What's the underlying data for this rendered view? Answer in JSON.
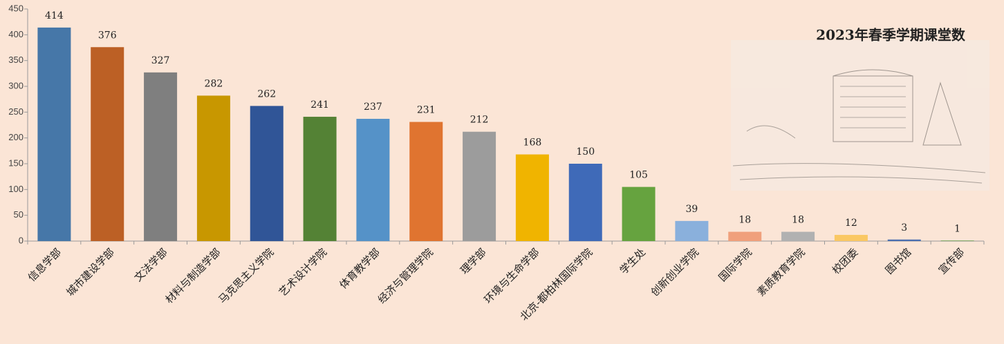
{
  "chart_data": {
    "type": "bar",
    "title": "2023年春季学期课堂数",
    "categories": [
      "信息学部",
      "城市建设学部",
      "文法学部",
      "材料与制造学部",
      "马克思主义学院",
      "艺术设计学院",
      "体育教学部",
      "经济与管理学院",
      "理学部",
      "环境与生命学部",
      "北京-都柏林国际学院",
      "学生处",
      "创新创业学院",
      "国际学院",
      "素质教育学院",
      "校团委",
      "图书馆",
      "宣传部"
    ],
    "values": [
      414,
      376,
      327,
      282,
      262,
      241,
      237,
      231,
      212,
      168,
      150,
      105,
      39,
      18,
      18,
      12,
      3,
      1
    ],
    "colors": [
      "#4677a8",
      "#bc6025",
      "#7f7f7f",
      "#c89700",
      "#305597",
      "#548235",
      "#5592c8",
      "#e07430",
      "#9c9c9c",
      "#f0b400",
      "#3f6ab8",
      "#66a33f",
      "#8ab0dc",
      "#f0a07c",
      "#b1b1b1",
      "#fac864",
      "#4a6fb0",
      "#5f9a45"
    ],
    "ylim": [
      0,
      450
    ],
    "yticks": [
      0,
      50,
      100,
      150,
      200,
      250,
      300,
      350,
      400,
      450
    ]
  }
}
